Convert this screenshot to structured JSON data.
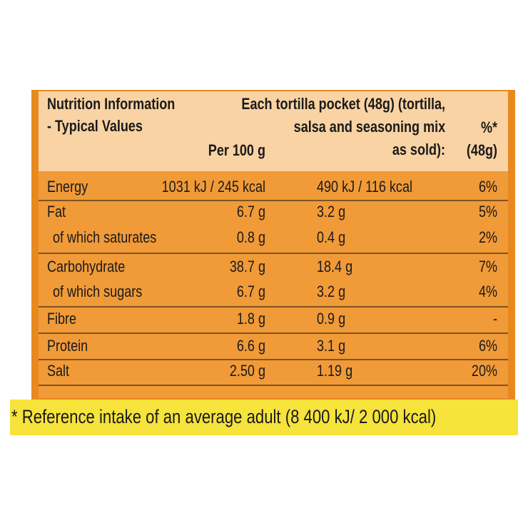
{
  "header": {
    "title_lines": [
      "Nutrition Information",
      "- Typical Values"
    ],
    "per_100g": "Per 100 g",
    "per_pocket_lines": [
      "Each tortilla pocket (48g) (tortilla,",
      "salsa and seasoning mix",
      "as sold):"
    ],
    "ri_lines": [
      "%*",
      "(48g)"
    ]
  },
  "table": {
    "rows": [
      [
        "Energy",
        "1031 kJ / 245 kcal",
        "490 kJ / 116 kcal",
        "6%"
      ],
      [
        "Fat",
        "6.7 g",
        "3.2 g",
        "5%"
      ],
      [
        "of which saturates",
        "0.8 g",
        "0.4 g",
        "2%"
      ],
      [
        "Carbohydrate",
        "38.7 g",
        "18.4 g",
        "7%"
      ],
      [
        "of which sugars",
        "6.7 g",
        "3.2 g",
        "4%"
      ],
      [
        "Fibre",
        "1.8 g",
        "0.9 g",
        "-"
      ],
      [
        "Protein",
        "6.6 g",
        "3.1 g",
        "6%"
      ],
      [
        "Salt",
        "2.50 g",
        "1.19 g",
        "20%"
      ]
    ]
  },
  "footnote": "* Reference intake of an average adult (8 400 kJ/ 2 000 kcal)"
}
